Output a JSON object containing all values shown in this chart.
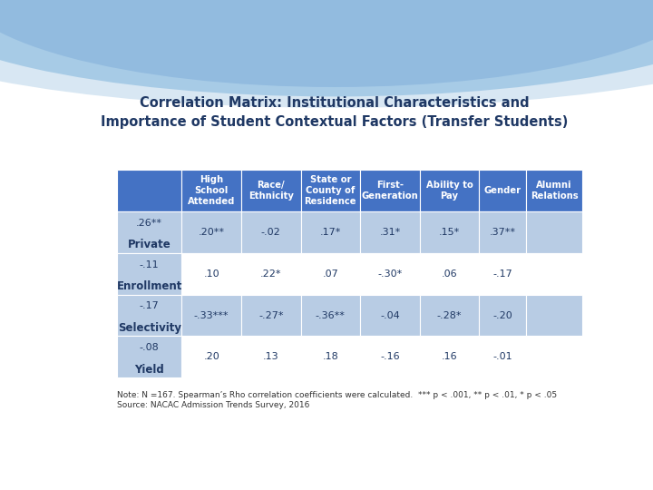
{
  "title_line1": "Correlation Matrix: Institutional Characteristics and",
  "title_line2": "Importance of Student Contextual Factors (Transfer Students)",
  "col_headers": [
    "High\nSchool\nAttended",
    "Race/\nEthnicity",
    "State or\nCounty of\nResidence",
    "First-\nGeneration",
    "Ability to\nPay",
    "Gender",
    "Alumni\nRelations"
  ],
  "row_headers": [
    "Private",
    "Enrollment",
    "Selectivity",
    "Yield"
  ],
  "data": [
    [
      ".26**",
      ".20**",
      "-.02",
      ".17*",
      ".31*",
      ".15*",
      ".37**"
    ],
    [
      "-.11",
      ".10",
      ".22*",
      ".07",
      "-.30*",
      ".06",
      "-.17"
    ],
    [
      "-.17",
      "-.33***",
      "-.27*",
      "-.36**",
      "-.04",
      "-.28*",
      "-.20"
    ],
    [
      "-.08",
      ".20",
      ".13",
      ".18",
      "-.16",
      ".16",
      "-.01"
    ]
  ],
  "note": "Note: N =167. Spearman’s Rho correlation coefficients were calculated.  *** p < .001, ** p < .01, * p < .05\nSource: NACAC Admission Trends Survey, 2016",
  "header_bg": "#4472C4",
  "header_text": "#FFFFFF",
  "row_bg_odd": "#B8CCE4",
  "row_bg_even": "#FFFFFF",
  "row_label_bg": "#B8CCE4",
  "row_label_text": "#1F3864",
  "data_text": "#1F3864",
  "title_text": "#1F3864",
  "bg_color": "#FFFFFF",
  "arc_color1": "#4472C4",
  "arc_color2": "#70ADD9",
  "arc_color3": "#B8D4EA"
}
